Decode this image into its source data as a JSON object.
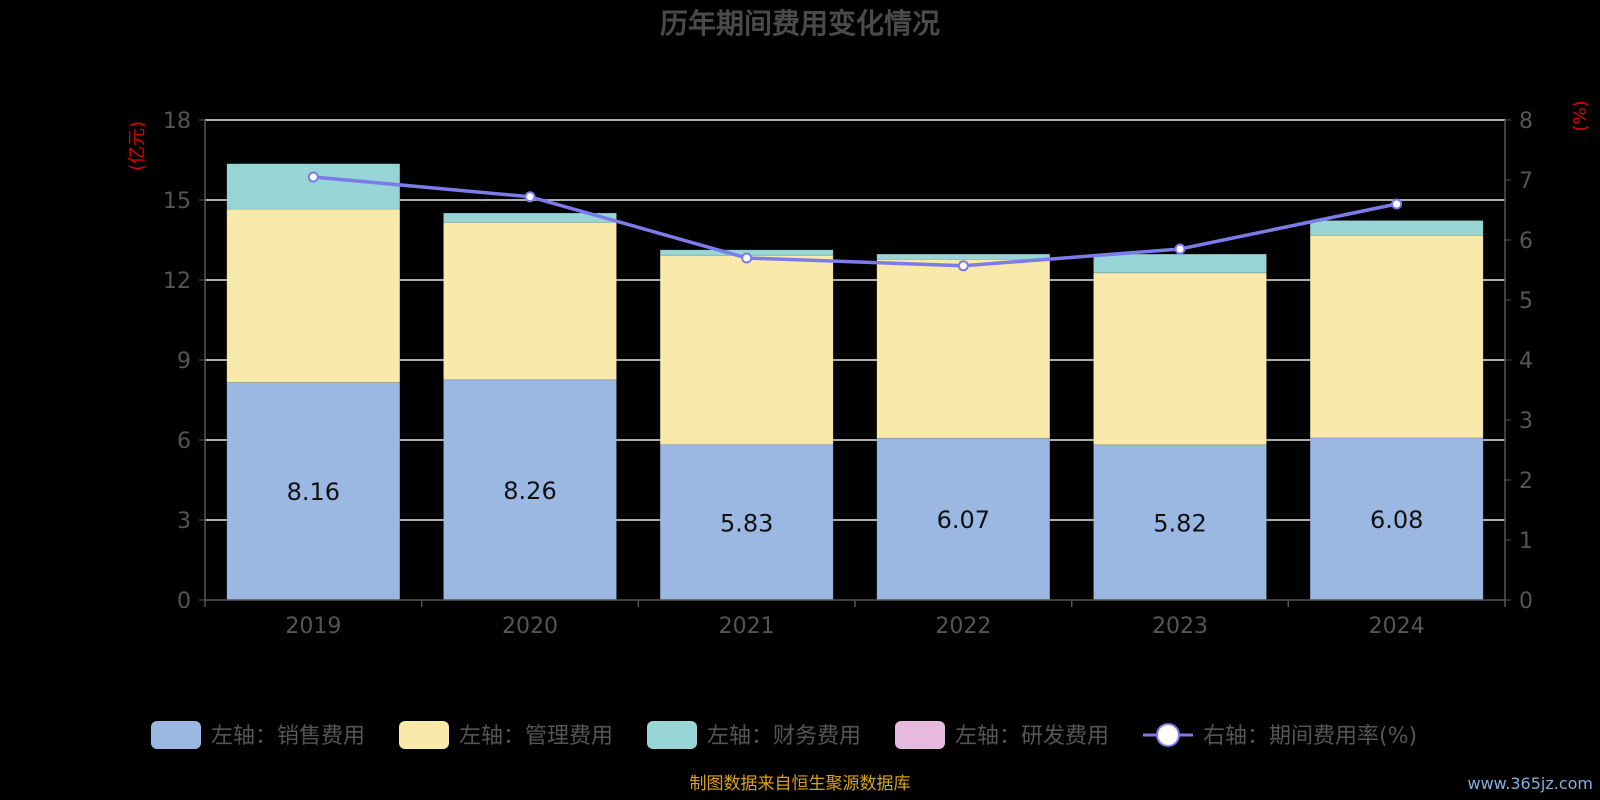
{
  "chart_data": {
    "type": "bar",
    "title": "历年期间费用变化情况",
    "categories": [
      "2019",
      "2020",
      "2021",
      "2022",
      "2023",
      "2024"
    ],
    "y_left": {
      "unit": "(亿元)",
      "range": [
        0,
        18
      ],
      "ticks": [
        "0",
        "3",
        "6",
        "9",
        "12",
        "15",
        "18"
      ]
    },
    "y_right": {
      "unit": "(%)",
      "range": [
        0,
        8
      ],
      "ticks": [
        "0",
        "1",
        "2",
        "3",
        "4",
        "5",
        "6",
        "7",
        "8"
      ]
    },
    "stacked": true,
    "grid": true,
    "series": [
      {
        "name": "左轴：销售费用",
        "type": "bar",
        "axis": "left",
        "color": "#9bb8e3",
        "values": [
          8.16,
          8.26,
          5.83,
          6.07,
          5.82,
          6.08
        ],
        "labels": [
          "8.16",
          "8.26",
          "5.83",
          "6.07",
          "5.82",
          "6.08"
        ]
      },
      {
        "name": "左轴：管理费用",
        "type": "bar",
        "axis": "left",
        "color": "#f9e9aa",
        "values": [
          6.5,
          5.9,
          7.1,
          6.7,
          6.45,
          7.6
        ]
      },
      {
        "name": "左轴：财务费用",
        "type": "bar",
        "axis": "left",
        "color": "#98d5d6",
        "values": [
          1.7,
          0.35,
          0.2,
          0.2,
          0.7,
          0.55
        ]
      },
      {
        "name": "左轴：研发费用",
        "type": "bar",
        "axis": "left",
        "color": "#e7b9de",
        "values": [
          0,
          0,
          0,
          0,
          0,
          0
        ]
      },
      {
        "name": "右轴：期间费用率(%)",
        "type": "line",
        "axis": "right",
        "color": "#7b7bea",
        "values": [
          7.05,
          6.72,
          5.7,
          5.57,
          5.85,
          6.6
        ]
      }
    ],
    "legend_position": "bottom"
  },
  "footer": {
    "source": "制图数据来自恒生聚源数据库",
    "watermark": "www.365jz.com"
  }
}
